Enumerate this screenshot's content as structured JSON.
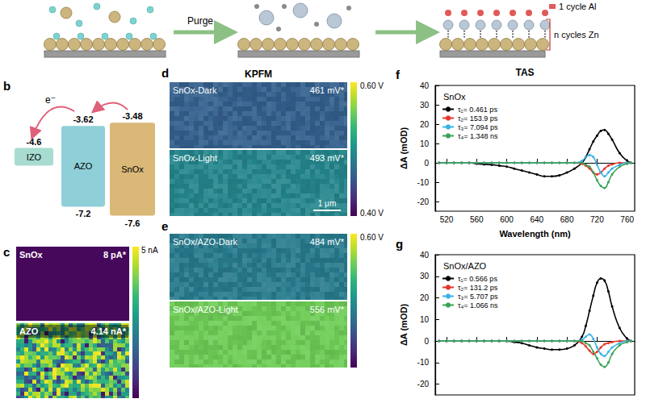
{
  "figure": {
    "schematic": {
      "step_label": "Purge",
      "layer_labels": [
        "1 cycle Al",
        "n cycles Zn"
      ]
    },
    "panels": {
      "b": {
        "letter": "b",
        "electron_label": "e⁻",
        "bands": [
          {
            "name": "IZO",
            "top": "-4.6"
          },
          {
            "name": "AZO",
            "top": "-3.62",
            "bottom": "-7.2"
          },
          {
            "name": "SnOx",
            "top": "-3.48",
            "bottom": "-7.6"
          }
        ]
      },
      "c": {
        "letter": "c",
        "images": [
          {
            "label": "SnOx",
            "value": "8 pA*"
          },
          {
            "label": "AZO",
            "value": "4.14 nA*"
          }
        ],
        "colorbar": [
          "5 nA"
        ]
      },
      "d": {
        "letter": "d",
        "heading": "KPFM",
        "images": [
          {
            "label": "SnOx-Dark",
            "value": "461 mV*"
          },
          {
            "label": "SnOx-Light",
            "value": "493 mV*"
          }
        ],
        "colorbar": [
          "0.60 V",
          "0.40 V"
        ],
        "scale_bar": "1 μm"
      },
      "e": {
        "letter": "e",
        "images": [
          {
            "label": "SnOx/AZO-Dark",
            "value": "484 mV*"
          },
          {
            "label": "SnOx/AZO-Light",
            "value": "556 mV*"
          }
        ],
        "colorbar": [
          "0.60 V"
        ]
      },
      "f": {
        "letter": "f",
        "heading": "TAS"
      },
      "g": {
        "letter": "g"
      }
    }
  },
  "chart_data": [
    {
      "type": "line",
      "title": "SnOx",
      "x_label": "Wavelength (nm)",
      "y_label": "ΔA (mOD)",
      "x": [
        510,
        520,
        530,
        540,
        550,
        560,
        570,
        580,
        590,
        600,
        610,
        620,
        630,
        640,
        650,
        660,
        670,
        680,
        690,
        700,
        705,
        710,
        715,
        720,
        725,
        730,
        735,
        740,
        750,
        760,
        765
      ],
      "xlim": [
        505,
        770
      ],
      "xticks": [
        520,
        560,
        600,
        640,
        680,
        720,
        760
      ],
      "ylim": [
        -25,
        40
      ],
      "yticks": [
        -20,
        -10,
        0,
        10,
        20,
        30,
        40
      ],
      "grid": false,
      "legend": "upper left",
      "marker": "circle",
      "line_style": "solid",
      "series": [
        {
          "name": "τ₁= 0.461 ps",
          "color": "#000000",
          "values": [
            0,
            0,
            0,
            0,
            0,
            -0.5,
            -0.8,
            -1,
            -1.5,
            -2,
            -3,
            -4,
            -5,
            -6,
            -7,
            -7,
            -6.5,
            -5,
            -3,
            0,
            3,
            7,
            11,
            14,
            16.5,
            17,
            15,
            12,
            5,
            1,
            0
          ]
        },
        {
          "name": "τ₂= 153.9 ps",
          "color": "#e8372d",
          "values": [
            0,
            0,
            0,
            0,
            0,
            0,
            0,
            0,
            0,
            0,
            0,
            0,
            0,
            0,
            0,
            0,
            0,
            0,
            0,
            -0.5,
            -1.5,
            -3,
            -5,
            -6,
            -5,
            -3,
            -1.5,
            -0.8,
            0,
            0,
            0
          ]
        },
        {
          "name": "τ₃= 7.094 ps",
          "color": "#39b3e6",
          "values": [
            0,
            0,
            0,
            0,
            0,
            0,
            0,
            0,
            0,
            0,
            0,
            0,
            0,
            0,
            0,
            0,
            0,
            0,
            0,
            1,
            3,
            4,
            3,
            -1,
            -5,
            -7,
            -5,
            -3,
            -1,
            0,
            0
          ]
        },
        {
          "name": "τ₄= 1.348 ns",
          "color": "#3aa35a",
          "values": [
            0,
            0,
            0,
            0,
            0,
            0,
            0,
            0,
            0,
            0,
            0,
            0,
            0,
            0,
            0,
            0,
            0,
            0,
            0,
            0,
            -1,
            -2,
            -5,
            -9,
            -12,
            -13,
            -10,
            -6,
            -2,
            -0.5,
            0
          ]
        }
      ]
    },
    {
      "type": "line",
      "title": "SnOx/AZO",
      "y_label": "ΔA (mOD)",
      "x": [
        510,
        520,
        530,
        540,
        550,
        560,
        570,
        580,
        590,
        600,
        610,
        620,
        630,
        640,
        650,
        660,
        670,
        680,
        690,
        700,
        705,
        710,
        715,
        720,
        725,
        730,
        735,
        740,
        750,
        760,
        765
      ],
      "xlim": [
        505,
        770
      ],
      "xticks": [
        520,
        560,
        600,
        640,
        680,
        720,
        760
      ],
      "ylim": [
        -25,
        40
      ],
      "yticks": [
        -20,
        -10,
        0,
        10,
        20,
        30,
        40
      ],
      "grid": false,
      "legend": "upper left",
      "marker": "circle",
      "line_style": "solid",
      "tick_labels": "y",
      "series": [
        {
          "name": "τ₁= 0.566 ps",
          "color": "#000000",
          "values": [
            0,
            0,
            0,
            0,
            0,
            0,
            0,
            0,
            0,
            0,
            -0.5,
            -1,
            -2,
            -3,
            -3.5,
            -4,
            -4,
            -3.5,
            -2,
            2,
            7,
            14,
            21,
            27,
            29,
            28,
            23,
            16,
            6,
            1,
            0
          ]
        },
        {
          "name": "τ₂= 131.2 ps",
          "color": "#e8372d",
          "values": [
            0,
            0,
            0,
            0,
            0,
            0,
            0,
            0,
            0,
            0,
            0,
            0,
            0,
            0,
            0,
            0,
            0,
            0,
            0,
            -1,
            -2.5,
            -4.5,
            -6,
            -5,
            -3,
            -1.5,
            -1,
            -0.5,
            0,
            0,
            0
          ]
        },
        {
          "name": "τ₃= 5.707 ps",
          "color": "#39b3e6",
          "values": [
            0,
            0,
            0,
            0,
            0,
            0,
            0,
            0,
            0,
            0,
            0,
            0,
            0,
            0,
            0,
            0,
            0,
            0,
            0,
            0.5,
            2,
            3,
            1,
            -3,
            -6,
            -7,
            -5,
            -3,
            -1,
            0,
            0
          ]
        },
        {
          "name": "τ₄= 1.066 ns",
          "color": "#3aa35a",
          "values": [
            0,
            0,
            0,
            0,
            0,
            0,
            0,
            0,
            0,
            0,
            0,
            0,
            0,
            0,
            0,
            0,
            0,
            0,
            0,
            0,
            -1,
            -2,
            -5,
            -8,
            -11,
            -12,
            -10,
            -6,
            -2,
            -0.5,
            0
          ]
        }
      ]
    }
  ]
}
